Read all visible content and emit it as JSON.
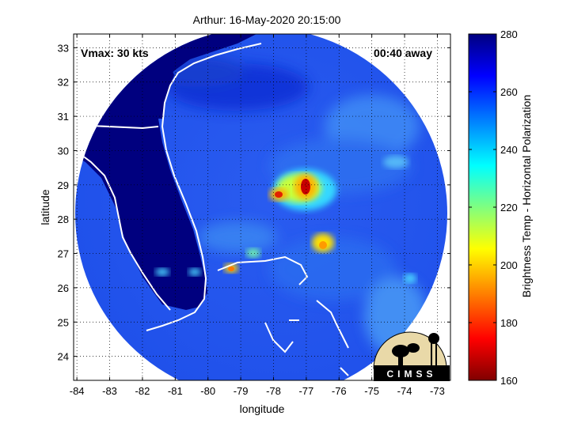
{
  "title": "Arthur: 16-May-2020 20:15:00",
  "annotations": {
    "vmax": "Vmax: 30 kts",
    "time_away": "00:40 away"
  },
  "axes": {
    "xlabel": "longitude",
    "ylabel": "latitude",
    "xlim": [
      -84.1,
      -72.6
    ],
    "ylim": [
      23.3,
      33.4
    ],
    "xticks": [
      "-84",
      "-83",
      "-82",
      "-81",
      "-80",
      "-79",
      "-78",
      "-77",
      "-76",
      "-75",
      "-74",
      "-73"
    ],
    "yticks": [
      "33",
      "32",
      "31",
      "30",
      "29",
      "28",
      "27",
      "26",
      "25",
      "24"
    ],
    "grid": true
  },
  "colorbar": {
    "label": "Brightness Temp - Horizontal Polarization",
    "ticks": [
      "280",
      "260",
      "240",
      "220",
      "200",
      "180",
      "160"
    ],
    "range": [
      160,
      280
    ],
    "colormap": "jet",
    "colors": [
      "#800000",
      "#ff0000",
      "#ffff00",
      "#00ffff",
      "#0000ff",
      "#000080"
    ]
  },
  "logo": {
    "text": "CIMSS"
  },
  "chart_data": {
    "type": "heatmap",
    "title": "Arthur: 16-May-2020 20:15:00",
    "xlabel": "longitude",
    "ylabel": "latitude",
    "xlim": [
      -84.1,
      -72.6
    ],
    "ylim": [
      23.3,
      33.4
    ],
    "colorbar_range": [
      160,
      280
    ],
    "background_value": 255,
    "land_value": 280,
    "features": [
      {
        "lon": -77.0,
        "lat": 28.9,
        "value": 170
      },
      {
        "lon": -77.8,
        "lat": 28.6,
        "value": 190
      },
      {
        "lon": -77.3,
        "lat": 28.5,
        "value": 215
      },
      {
        "lon": -76.5,
        "lat": 27.1,
        "value": 205
      },
      {
        "lon": -79.1,
        "lat": 26.5,
        "value": 200
      },
      {
        "lon": -78.8,
        "lat": 27.0,
        "value": 228
      },
      {
        "lon": -81.4,
        "lat": 26.4,
        "value": 235
      },
      {
        "lon": -80.4,
        "lat": 26.4,
        "value": 238
      },
      {
        "lon": -73.9,
        "lat": 26.2,
        "value": 238
      }
    ]
  }
}
